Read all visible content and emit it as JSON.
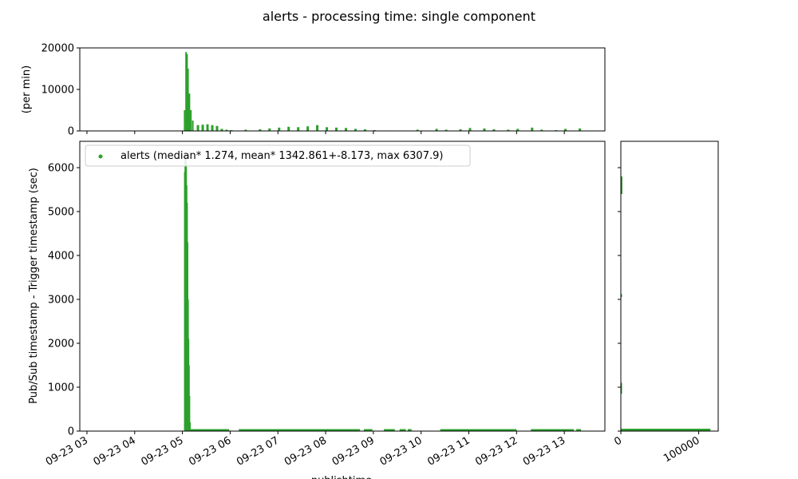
{
  "chart_data": {
    "type": "multi-panel",
    "title": "alerts - processing time: single component",
    "color": "#2ca02c",
    "panels": {
      "top_histogram": {
        "type": "bar",
        "ylabel": "(per min)",
        "ylim": [
          0,
          20000
        ],
        "yticks": [
          0,
          10000,
          20000
        ],
        "x_hours": [
          5.0,
          5.03,
          5.06,
          5.08,
          5.1,
          5.13,
          5.16,
          5.2,
          5.3,
          5.4,
          5.5,
          5.6,
          5.7,
          5.8,
          5.9,
          6.0,
          6.3,
          6.6,
          6.8,
          7.0,
          7.2,
          7.4,
          7.6,
          7.8,
          8.0,
          8.2,
          8.4,
          8.6,
          8.8,
          9.0,
          9.3,
          9.6,
          9.9,
          10.3,
          10.5,
          10.8,
          11.0,
          11.3,
          11.5,
          11.8,
          12.0,
          12.3,
          12.5,
          12.8,
          13.0,
          13.3
        ],
        "values": [
          0,
          5000,
          19000,
          18500,
          15000,
          9000,
          5000,
          2500,
          1400,
          1500,
          1600,
          1400,
          1200,
          500,
          300,
          200,
          300,
          400,
          600,
          800,
          1000,
          900,
          1100,
          1400,
          900,
          800,
          700,
          500,
          400,
          200,
          100,
          100,
          300,
          500,
          300,
          400,
          700,
          600,
          400,
          300,
          500,
          800,
          300,
          200,
          500,
          600
        ]
      },
      "main_scatter": {
        "type": "scatter",
        "ylabel": "Pub/Sub timestamp - Trigger timestamp (sec)",
        "xlabel": "publishtime",
        "ylim": [
          0,
          6600
        ],
        "yticks": [
          0,
          1000,
          2000,
          3000,
          4000,
          5000,
          6000
        ],
        "xlim_hours": [
          2.85,
          13.85
        ],
        "xticks_hours": [
          3,
          4,
          5,
          6,
          7,
          8,
          9,
          10,
          11,
          12,
          13
        ],
        "xtick_labels": [
          "09-23 03",
          "09-23 04",
          "09-23 05",
          "09-23 06",
          "09-23 07",
          "09-23 08",
          "09-23 09",
          "09-23 10",
          "09-23 11",
          "09-23 12",
          "09-23 13"
        ],
        "legend": {
          "location": "upper-left",
          "label": "alerts (median* 1.274, mean* 1342.861+-8.173, max 6307.9)"
        },
        "spike": {
          "x_hours": [
            5.05,
            5.06,
            5.07,
            5.08,
            5.09,
            5.1,
            5.11,
            5.12,
            5.13,
            5.14,
            5.15
          ],
          "y_max": [
            5900,
            6300,
            6100,
            5600,
            5200,
            4300,
            3000,
            2100,
            1500,
            800,
            200
          ]
        },
        "baseline_segments_hours": [
          [
            5.16,
            5.98
          ],
          [
            6.18,
            8.72
          ],
          [
            8.8,
            8.98
          ],
          [
            9.22,
            9.45
          ],
          [
            9.55,
            9.68
          ],
          [
            9.72,
            9.8
          ],
          [
            10.4,
            12.0
          ],
          [
            12.3,
            13.2
          ],
          [
            13.25,
            13.35
          ]
        ]
      },
      "side_histogram": {
        "type": "barh",
        "xlim": [
          0,
          125000
        ],
        "xticks": [
          0,
          100000
        ],
        "xtick_labels": [
          "0",
          "100000"
        ]
      }
    }
  }
}
